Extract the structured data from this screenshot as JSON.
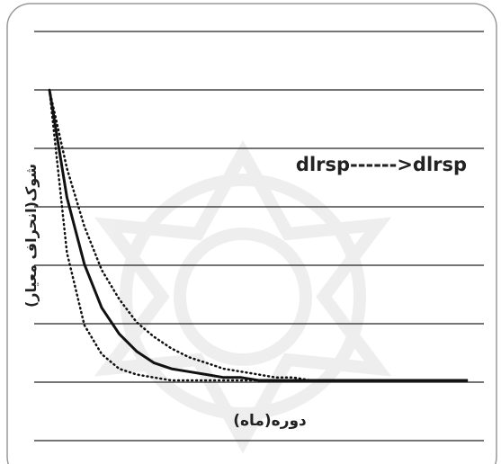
{
  "chart_data": {
    "type": "line",
    "title": "dlrsp------>dlrsp",
    "x_label": "دوره(ماه)",
    "y_label": "شوک(انحراف معیار)",
    "x": [
      0,
      1,
      2,
      3,
      4,
      5,
      6,
      7,
      8,
      9,
      10,
      11,
      12,
      13,
      14,
      15,
      16,
      17,
      18,
      19,
      20,
      21,
      22,
      23,
      24
    ],
    "xlim": [
      0,
      24
    ],
    "ylim": [
      0,
      1
    ],
    "series": [
      {
        "color": "#111111",
        "line_style": "solid",
        "values": [
          1,
          0.63,
          0.4,
          0.25,
          0.16,
          0.1,
          0.06,
          0.04,
          0.03,
          0.02,
          0.01,
          0.01,
          0,
          0,
          0,
          0,
          0,
          0,
          0,
          0,
          0,
          0,
          0,
          0,
          0
        ]
      },
      {
        "color": "#111111",
        "line_style": "dotted",
        "values": [
          1,
          0.73,
          0.53,
          0.38,
          0.28,
          0.2,
          0.15,
          0.11,
          0.08,
          0.06,
          0.04,
          0.03,
          0.02,
          0.01,
          0.01,
          0,
          0,
          0,
          0,
          0,
          0,
          0,
          0,
          0,
          0
        ]
      },
      {
        "color": "#111111",
        "line_style": "dotted",
        "values": [
          1,
          0.44,
          0.19,
          0.09,
          0.04,
          0.02,
          0.01,
          0,
          0,
          0,
          0,
          0,
          0,
          0,
          0,
          0,
          0,
          0,
          0,
          0,
          0,
          0,
          0,
          0,
          0
        ]
      }
    ]
  }
}
